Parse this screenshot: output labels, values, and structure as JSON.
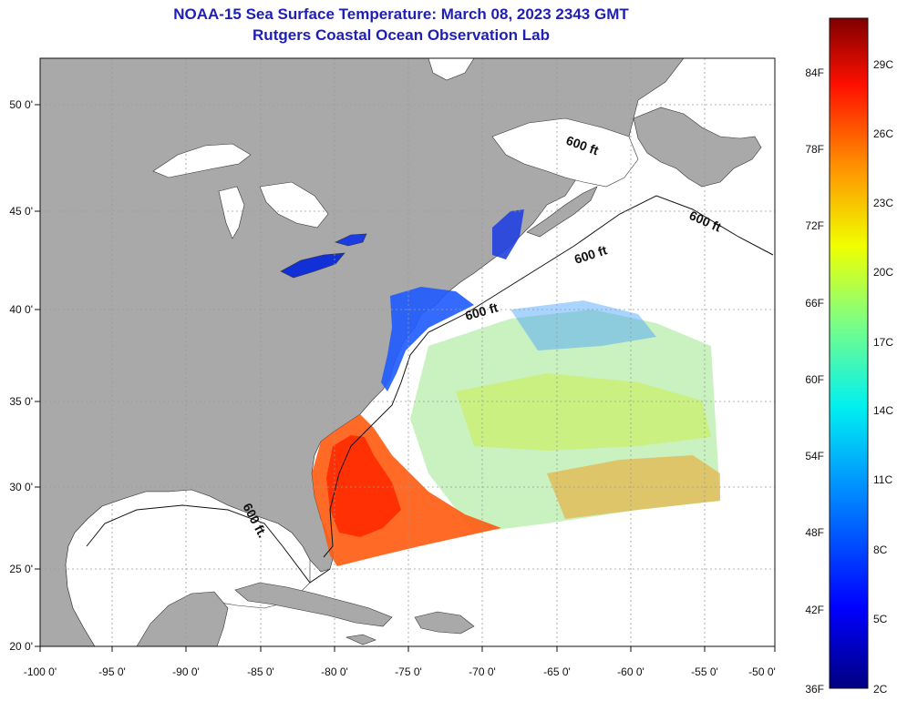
{
  "title": {
    "line1": "NOAA-15 Sea Surface Temperature:  March 08, 2023 2343 GMT",
    "line2": "Rutgers Coastal Ocean Observation Lab"
  },
  "axes": {
    "longitude_labels": [
      "-100 0'",
      "-95 0'",
      "-90 0'",
      "-85 0'",
      "-80 0'",
      "-75 0'",
      "-70 0'",
      "-65 0'",
      "-60 0'",
      "-55 0'",
      "-50 0'"
    ],
    "latitude_labels": [
      "20 0'",
      "25 0'",
      "30 0'",
      "35 0'",
      "40 0'",
      "45 0'",
      "50 0'"
    ]
  },
  "contour_labels": [
    "600 ft",
    "600 ft",
    "600 ft",
    "600 ft",
    "600 ft."
  ],
  "colorbar": {
    "fahrenheit_labels": [
      "36F",
      "42F",
      "48F",
      "54F",
      "60F",
      "66F",
      "72F",
      "78F",
      "84F"
    ],
    "celsius_labels": [
      "2C",
      "5C",
      "8C",
      "11C",
      "14C",
      "17C",
      "20C",
      "23C",
      "26C",
      "29C"
    ]
  },
  "colors": {
    "land": "#a9a9a9",
    "ocean": "#ffffff",
    "title": "#1f1fb4",
    "grid": "#9a9a9a"
  }
}
